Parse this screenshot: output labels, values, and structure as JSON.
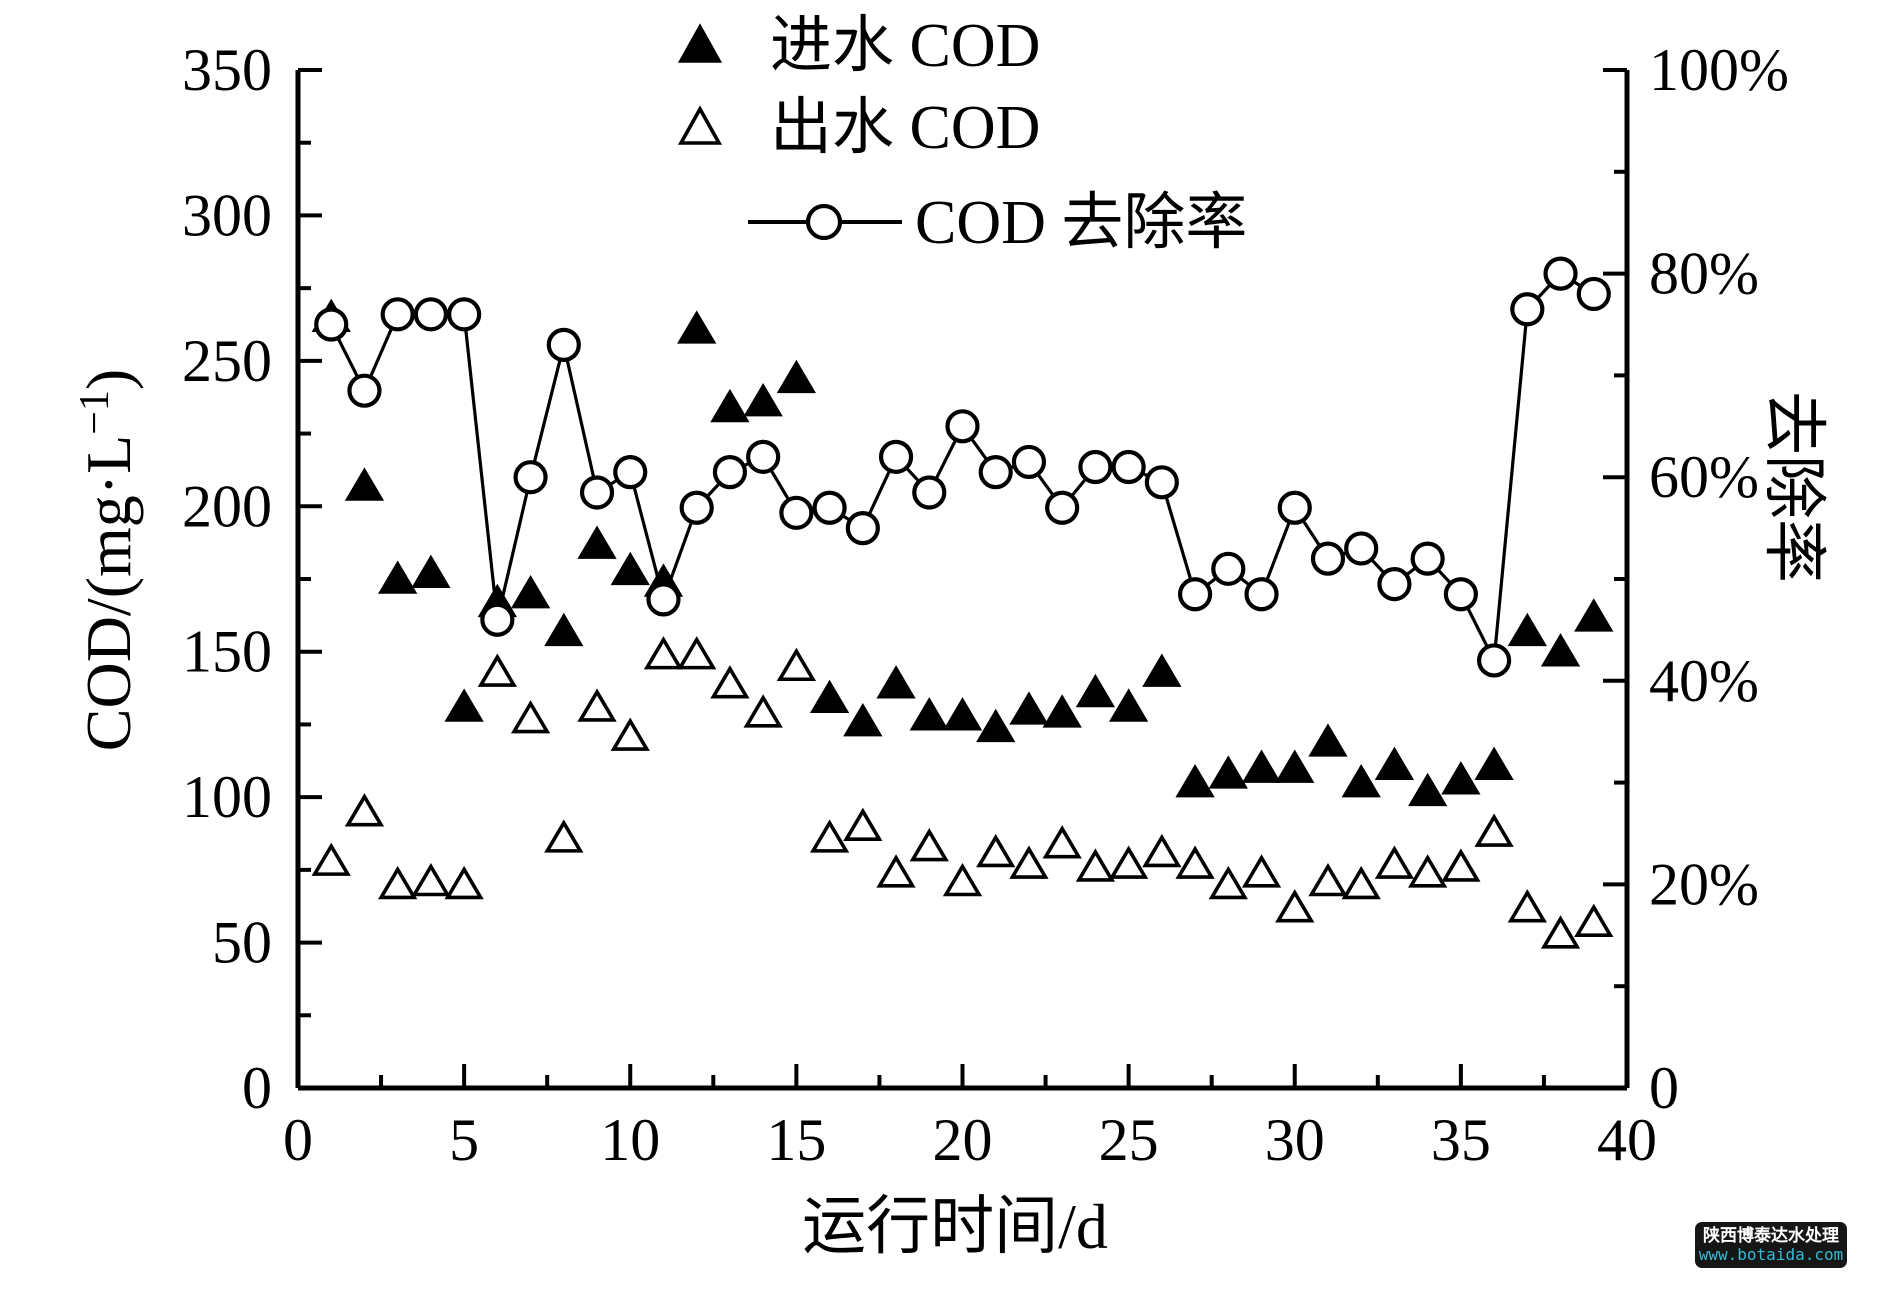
{
  "figure": {
    "legend": [
      {
        "label": "进水 COD",
        "marker": "filled-triangle"
      },
      {
        "label": "出水 COD",
        "marker": "open-triangle"
      },
      {
        "label": "COD 去除率",
        "marker": "line-open-circle"
      }
    ],
    "x_axis": {
      "title": "运行时间/d",
      "min": 0,
      "max": 40,
      "tick_values": [
        0,
        5,
        10,
        15,
        20,
        25,
        30,
        35,
        40
      ],
      "tick_labels": [
        "0",
        "5",
        "10",
        "15",
        "20",
        "25",
        "30",
        "35",
        "40"
      ],
      "minor_step": 2.5
    },
    "y_left_axis": {
      "title": "COD/(mg·L⁻¹)",
      "title_parts": {
        "base": "COD/(mg·L",
        "sup": "−1",
        "close": ")"
      },
      "min": 0,
      "max": 350,
      "tick_values": [
        0,
        50,
        100,
        150,
        200,
        250,
        300,
        350
      ],
      "tick_labels": [
        "0",
        "50",
        "100",
        "150",
        "200",
        "250",
        "300",
        "350"
      ],
      "minor_step": 25
    },
    "y_right_axis": {
      "title": "去除率",
      "min": 0,
      "max": 100,
      "tick_values": [
        0,
        20,
        40,
        60,
        80,
        100
      ],
      "tick_labels": [
        "0",
        "20%",
        "40%",
        "60%",
        "80%",
        "100%"
      ],
      "minor_step": 10
    },
    "colors": {
      "ink": "#000000",
      "background": "#ffffff"
    },
    "watermark": {
      "line1": "陕西博泰达水处理",
      "line2": "www.botaida.com",
      "bg": "#161616",
      "line1_color": "#ffffff",
      "line2_color": "#35b9d4"
    }
  },
  "chart_data": {
    "type": "scatter+line",
    "title": "",
    "xlabel": "运行时间/d",
    "ylabel_left": "COD/(mg·L⁻¹)",
    "ylabel_right": "去除率",
    "x_range": [
      0,
      40
    ],
    "y_left_range": [
      0,
      350
    ],
    "y_right_range": [
      0,
      100
    ],
    "grid": false,
    "legend_position": "top-center-inside",
    "x": [
      1,
      2,
      3,
      4,
      5,
      6,
      7,
      8,
      9,
      10,
      11,
      12,
      13,
      14,
      15,
      16,
      17,
      18,
      19,
      20,
      21,
      22,
      23,
      24,
      25,
      26,
      27,
      28,
      29,
      30,
      31,
      32,
      33,
      34,
      35,
      36,
      37,
      38,
      39
    ],
    "series": [
      {
        "name": "进水 COD",
        "axis": "left",
        "marker": "filled-triangle",
        "line": false,
        "values": [
          265,
          207,
          175,
          177,
          131,
          167,
          170,
          157,
          187,
          178,
          174,
          261,
          234,
          236,
          244,
          134,
          126,
          139,
          128,
          128,
          124,
          130,
          129,
          136,
          131,
          143,
          105,
          108,
          110,
          110,
          119,
          105,
          111,
          102,
          106,
          111,
          157,
          150,
          162
        ]
      },
      {
        "name": "出水 COD",
        "axis": "left",
        "marker": "open-triangle",
        "line": false,
        "values": [
          78,
          95,
          70,
          71,
          70,
          143,
          127,
          86,
          131,
          121,
          149,
          149,
          139,
          129,
          145,
          86,
          90,
          74,
          83,
          71,
          81,
          77,
          84,
          76,
          77,
          81,
          77,
          70,
          74,
          62,
          71,
          70,
          77,
          74,
          76,
          88,
          62,
          53,
          57
        ]
      },
      {
        "name": "COD 去除率",
        "axis": "right",
        "marker": "open-circle",
        "line": true,
        "values": [
          75,
          68.5,
          76,
          76,
          76,
          46,
          60,
          73,
          58.5,
          60.5,
          48,
          57,
          60.5,
          62,
          56.5,
          57,
          55,
          62,
          58.5,
          65,
          60.5,
          61.5,
          57,
          61,
          61,
          59.5,
          48.5,
          51,
          48.5,
          57,
          52,
          53,
          49.5,
          52,
          48.5,
          42,
          76.5,
          80,
          78
        ]
      }
    ]
  }
}
